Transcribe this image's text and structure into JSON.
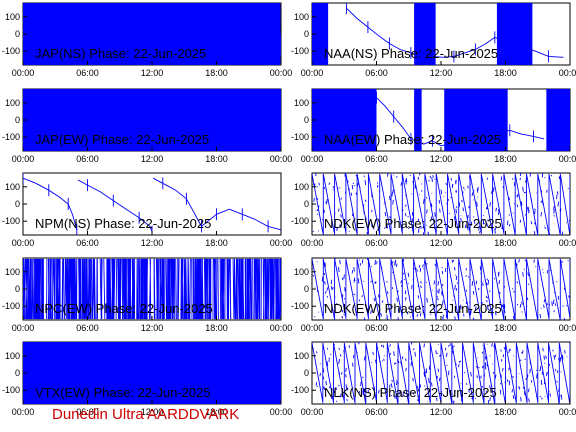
{
  "footer": "Dunedin Ultra AARDDVARK",
  "colors": {
    "trace": "#0000ff",
    "footer": "#cc0000",
    "frame": "#000000"
  },
  "chart_data": [
    {
      "type": "line",
      "station": "JAP(NS)",
      "title": "JAP(NS) Phase: 22-Jun-2025",
      "xticks": [
        "00:00",
        "06:00",
        "12:00",
        "18:00",
        "00:00"
      ],
      "yticks": [
        "100",
        "0",
        "-100"
      ],
      "xlim": [
        0,
        24
      ],
      "ylim": [
        -180,
        180
      ],
      "pattern": "dense-noise",
      "blocks": [
        [
          0,
          23.9
        ]
      ],
      "line": [
        [
          23.9,
          40
        ],
        [
          23.95,
          -20
        ],
        [
          24,
          -90
        ]
      ]
    },
    {
      "type": "line",
      "station": "NAA(NS)",
      "title": "NAA(NS) Phase: 22-Jun-2025",
      "xticks": [
        "00:00",
        "06:00",
        "12:00",
        "18:00",
        "00:00"
      ],
      "yticks": [
        "100",
        "0",
        "-100"
      ],
      "xlim": [
        0,
        24
      ],
      "ylim": [
        -180,
        180
      ],
      "pattern": "dense-noise",
      "blocks": [
        [
          0.0,
          1.5
        ],
        [
          9.5,
          11.5
        ],
        [
          17.2,
          20.5
        ]
      ],
      "line": [
        [
          3.2,
          150
        ],
        [
          4.2,
          90
        ],
        [
          5.2,
          40
        ],
        [
          6.2,
          -10
        ],
        [
          7.2,
          -55
        ],
        [
          8.2,
          -90
        ],
        [
          9.2,
          -110
        ],
        [
          10.2,
          -125
        ],
        [
          11.2,
          -130
        ],
        [
          12.2,
          -135
        ],
        [
          13.2,
          -130
        ],
        [
          14.2,
          -110
        ],
        [
          15.2,
          -90
        ],
        [
          16.2,
          -55
        ],
        [
          17.0,
          -20
        ],
        [
          20.8,
          -100
        ],
        [
          22.0,
          -130
        ],
        [
          23.4,
          -135
        ]
      ]
    },
    {
      "type": "line",
      "station": "JAP(EW)",
      "title": "JAP(EW) Phase: 22-Jun-2025",
      "xticks": [
        "00:00",
        "06:00",
        "12:00",
        "18:00",
        "00:00"
      ],
      "yticks": [
        "100",
        "0",
        "-100"
      ],
      "xlim": [
        0,
        24
      ],
      "ylim": [
        -180,
        180
      ],
      "pattern": "dense-noise",
      "blocks": [
        [
          0,
          24
        ]
      ],
      "line": []
    },
    {
      "type": "line",
      "station": "NAA(EW)",
      "title": "NAA(EW) Phase: 22-Jun-2025",
      "xticks": [
        "00:00",
        "06:00",
        "12:00",
        "18:00",
        "00:00"
      ],
      "yticks": [
        "100",
        "0",
        "-100"
      ],
      "xlim": [
        0,
        24
      ],
      "ylim": [
        -180,
        180
      ],
      "pattern": "dense-noise",
      "blocks": [
        [
          0.0,
          6.0
        ],
        [
          9.5,
          10.2
        ],
        [
          12.3,
          18.2
        ],
        [
          21.8,
          24
        ]
      ],
      "line": [
        [
          6.0,
          130
        ],
        [
          6.8,
          80
        ],
        [
          7.6,
          20
        ],
        [
          8.4,
          -40
        ],
        [
          9.2,
          -110
        ],
        [
          10.4,
          -140
        ],
        [
          11.2,
          -120
        ],
        [
          12.0,
          -150
        ],
        [
          18.4,
          -60
        ],
        [
          19.4,
          -80
        ],
        [
          20.6,
          -95
        ],
        [
          21.6,
          -110
        ]
      ]
    },
    {
      "type": "line",
      "station": "NPM(NS)",
      "title": "NPM(NS) Phase: 22-Jun-2025",
      "xticks": [
        "00:00",
        "06:00",
        "12:00",
        "18:00",
        "00:00"
      ],
      "yticks": [
        "100",
        "0",
        "-100"
      ],
      "xlim": [
        0,
        24
      ],
      "ylim": [
        -180,
        180
      ],
      "pattern": "sparse",
      "blocks": [],
      "line": [
        [
          0.0,
          150
        ],
        [
          1.2,
          120
        ],
        [
          2.4,
          80
        ],
        [
          3.4,
          40
        ],
        [
          4.2,
          0
        ],
        [
          4.6,
          -60
        ],
        [
          5.0,
          -150
        ],
        [
          5.1,
          140
        ],
        [
          6.0,
          110
        ],
        [
          7.2,
          70
        ],
        [
          8.4,
          20
        ],
        [
          9.6,
          -30
        ],
        [
          10.8,
          -80
        ],
        [
          11.8,
          -130
        ],
        [
          12.0,
          -160
        ],
        [
          12.1,
          150
        ],
        [
          13.0,
          120
        ],
        [
          14.2,
          80
        ],
        [
          15.2,
          30
        ],
        [
          16.0,
          -60
        ],
        [
          16.6,
          -130
        ],
        [
          17.2,
          -100
        ],
        [
          18.0,
          -60
        ],
        [
          19.2,
          -30
        ],
        [
          20.4,
          -60
        ],
        [
          21.6,
          -90
        ],
        [
          22.8,
          -130
        ],
        [
          24.0,
          -150
        ]
      ]
    },
    {
      "type": "line",
      "station": "NDK(EW)",
      "title": "NDK(EW) Phase: 22-Jun-2025",
      "xticks": [
        "00:00",
        "06:00",
        "12:00",
        "18:00",
        "00:00"
      ],
      "yticks": [
        "100",
        "0",
        "-100"
      ],
      "xlim": [
        0,
        24
      ],
      "ylim": [
        -180,
        180
      ],
      "pattern": "sawtooth",
      "blocks": [],
      "period": 1.05,
      "line": []
    },
    {
      "type": "line",
      "station": "NPC(EW)",
      "title": "NPC(EW) Phase: 22-Jun-2025",
      "xticks": [
        "00:00",
        "06:00",
        "12:00",
        "18:00",
        "00:00"
      ],
      "yticks": [
        "100",
        "0",
        "-100"
      ],
      "xlim": [
        0,
        24
      ],
      "ylim": [
        -180,
        180
      ],
      "pattern": "noise",
      "blocks": [],
      "line": []
    },
    {
      "type": "line",
      "station": "NDK(EW)",
      "title": "NDK(EW) Phase: 22-Jun-2025",
      "xticks": [
        "00:00",
        "06:00",
        "12:00",
        "18:00",
        "00:00"
      ],
      "yticks": [
        "100",
        "0",
        "-100"
      ],
      "xlim": [
        0,
        24
      ],
      "ylim": [
        -180,
        180
      ],
      "pattern": "sawtooth",
      "blocks": [],
      "period": 1.05,
      "line": []
    },
    {
      "type": "line",
      "station": "VTX(EW)",
      "title": "VTX(EW) Phase: 22-Jun-2025",
      "xticks": [
        "00:00",
        "06:00",
        "12:00",
        "18:00",
        "00:00"
      ],
      "yticks": [
        "100",
        "0",
        "-100"
      ],
      "xlim": [
        0,
        24
      ],
      "ylim": [
        -180,
        180
      ],
      "pattern": "dense-noise",
      "blocks": [
        [
          0,
          24
        ]
      ],
      "line": []
    },
    {
      "type": "line",
      "station": "NLK(NS)",
      "title": "NLK(NS) Phase: 22-Jun-2025",
      "xticks": [
        "00:00",
        "06:00",
        "12:00",
        "18:00",
        "00:00"
      ],
      "yticks": [
        "100",
        "0",
        "-100"
      ],
      "xlim": [
        0,
        24
      ],
      "ylim": [
        -180,
        180
      ],
      "pattern": "sawtooth",
      "blocks": [],
      "period": 1.0,
      "line": []
    }
  ]
}
